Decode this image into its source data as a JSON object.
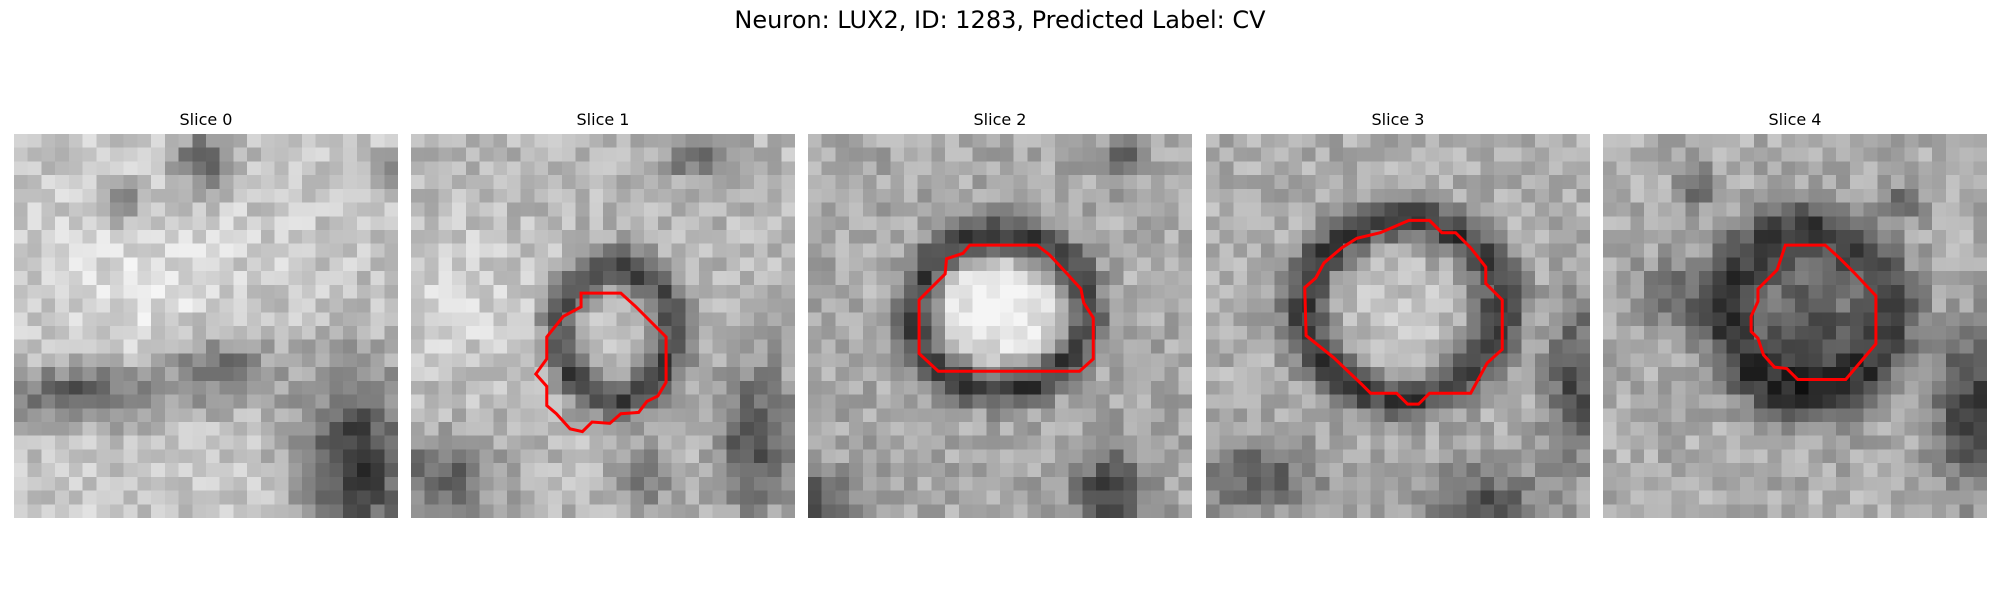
{
  "figure": {
    "title": "Neuron: LUX2, ID: 1283, Predicted Label: CV",
    "contour_color": "#ff0000",
    "colormap": "gray",
    "grid_size": 28
  },
  "slices": [
    {
      "title": "Slice 0",
      "has_contour": false
    },
    {
      "title": "Slice 1",
      "has_contour": true
    },
    {
      "title": "Slice 2",
      "has_contour": true
    },
    {
      "title": "Slice 3",
      "has_contour": true
    },
    {
      "title": "Slice 4",
      "has_contour": true
    }
  ]
}
